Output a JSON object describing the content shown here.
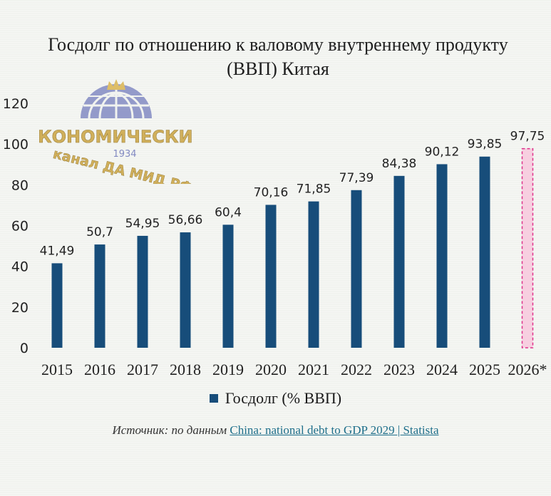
{
  "chart_data": {
    "type": "bar",
    "title": "Госдолг по отношению к валовому внутреннему продукту (ВВП) Китая",
    "categories": [
      "2015",
      "2016",
      "2017",
      "2018",
      "2019",
      "2020",
      "2021",
      "2022",
      "2023",
      "2024",
      "2025",
      "2026*"
    ],
    "series": [
      {
        "name": "Госдолг (% ВВП)",
        "values": [
          41.49,
          50.7,
          54.95,
          56.66,
          60.4,
          70.16,
          71.85,
          77.39,
          84.38,
          90.12,
          93.85,
          97.75
        ],
        "data_labels": [
          "41,49",
          "50,7",
          "54,95",
          "56,66",
          "60,4",
          "70,16",
          "71,85",
          "77,39",
          "84,38",
          "90,12",
          "93,85",
          "97,75"
        ]
      }
    ],
    "forecast_index": 11,
    "ylim": [
      0,
      120
    ],
    "yticks": [
      0,
      20,
      40,
      60,
      80,
      100,
      120
    ],
    "grid": false,
    "legend": "bottom",
    "colors": {
      "bar": "#174d7a",
      "forecast_border": "#e0308a",
      "forecast_fill": "#f7cfe0"
    }
  },
  "source": {
    "prefix": "Источник: по данным ",
    "link_text": "China: national debt to GDP 2029 | Statista"
  },
  "watermark": {
    "line1": "ЭКОНОМИЧЕСКИЙ",
    "year": "1934",
    "line2": "канал ДА МИД РФ"
  }
}
